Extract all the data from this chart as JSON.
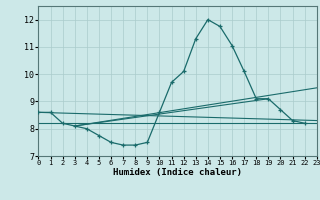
{
  "xlabel": "Humidex (Indice chaleur)",
  "bg_color": "#cce8e8",
  "grid_color": "#aacccc",
  "line_color": "#1a6b6b",
  "xlim": [
    0,
    23
  ],
  "ylim": [
    7,
    12.5
  ],
  "yticks": [
    7,
    8,
    9,
    10,
    11,
    12
  ],
  "xticks": [
    0,
    1,
    2,
    3,
    4,
    5,
    6,
    7,
    8,
    9,
    10,
    11,
    12,
    13,
    14,
    15,
    16,
    17,
    18,
    19,
    20,
    21,
    22,
    23
  ],
  "curve": {
    "x": [
      0,
      1,
      2,
      3,
      4,
      5,
      6,
      7,
      8,
      9,
      10,
      11,
      12,
      13,
      14,
      15,
      16,
      17,
      18,
      19,
      20,
      21,
      22
    ],
    "y": [
      8.6,
      8.6,
      8.2,
      8.1,
      8.0,
      7.75,
      7.5,
      7.4,
      7.4,
      7.5,
      8.6,
      9.7,
      10.1,
      11.3,
      12.0,
      11.75,
      11.05,
      10.1,
      9.1,
      9.1,
      8.7,
      8.3,
      8.2
    ]
  },
  "flat_line": {
    "x": [
      0,
      23
    ],
    "y": [
      8.2,
      8.2
    ]
  },
  "diag_line1": {
    "x": [
      0,
      23
    ],
    "y": [
      8.6,
      8.3
    ]
  },
  "diag_line2": {
    "x": [
      3,
      23
    ],
    "y": [
      8.1,
      9.5
    ]
  },
  "diag_line3": {
    "x": [
      3,
      19
    ],
    "y": [
      8.1,
      9.1
    ]
  }
}
